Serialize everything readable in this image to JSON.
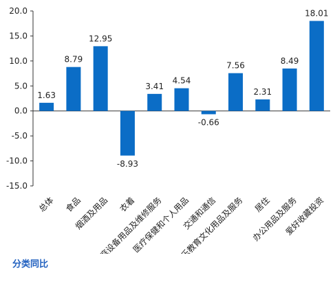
{
  "caption": "分类同比",
  "colors": {
    "bar": "#0b6dc6",
    "axis": "#333333",
    "text": "#222222",
    "caption": "#1f5fbf"
  },
  "chart_data": {
    "type": "bar",
    "title": "",
    "xlabel": "",
    "ylabel": "",
    "ylim": [
      -15.0,
      20.0
    ],
    "yticks": [
      "20.0",
      "15.0",
      "10.0",
      "5.0",
      "0.0",
      "-5.0",
      "-10.0",
      "-15.0"
    ],
    "ytick_values": [
      20,
      15,
      10,
      5,
      0,
      -5,
      -10,
      -15
    ],
    "grid": false,
    "legend": "none",
    "categories": [
      "总体",
      "食品",
      "烟酒及用品",
      "衣着",
      "家庭设备用品及维修服务",
      "医疗保健和个人用品",
      "交通和通信",
      "娱乐教育文化用品及服务",
      "居住",
      "办公用品及服务",
      "爱好收藏投资"
    ],
    "values": [
      1.63,
      8.79,
      12.95,
      -8.93,
      3.41,
      4.54,
      -0.66,
      7.56,
      2.31,
      8.49,
      18.01
    ],
    "labels": [
      "1.63",
      "8.79",
      "12.95",
      "-8.93",
      "3.41",
      "4.54",
      "-0.66",
      "7.56",
      "2.31",
      "8.49",
      "18.01"
    ]
  }
}
